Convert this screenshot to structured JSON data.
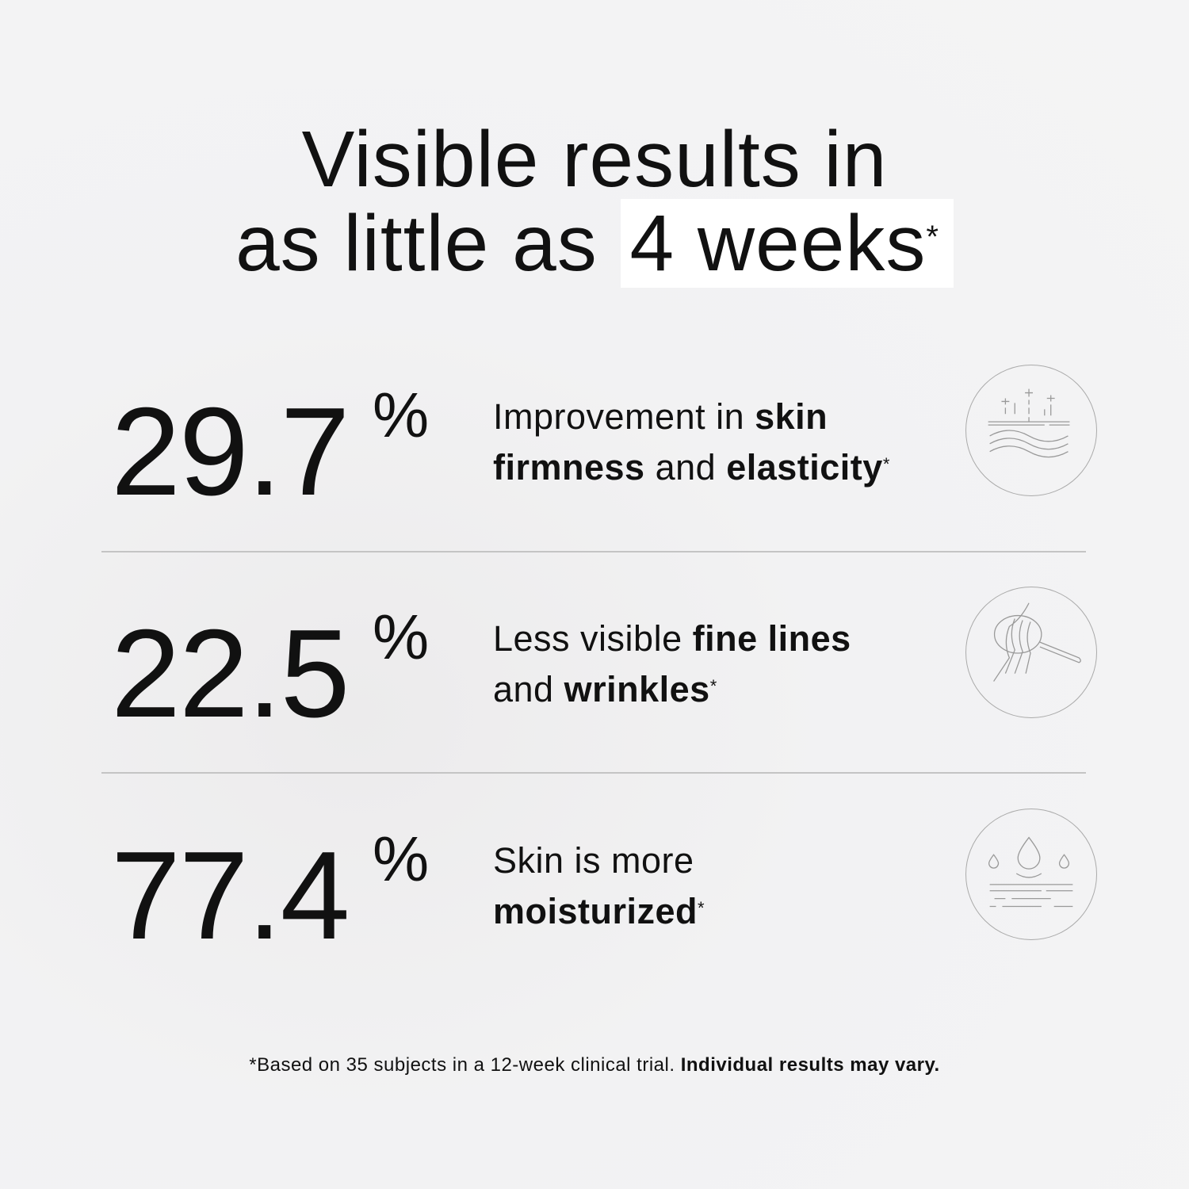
{
  "headline": {
    "line1": "Visible results in",
    "line2_pre": "as little as",
    "line2_highlight": "4 weeks",
    "asterisk": "*"
  },
  "stats": [
    {
      "value": "29.7",
      "unit": "%",
      "parts": [
        [
          "Improvement in ",
          false
        ],
        [
          "skin",
          true
        ],
        [
          "\n",
          false
        ],
        [
          "firmness",
          true
        ],
        [
          " and ",
          false
        ],
        [
          "elasticity",
          true
        ]
      ],
      "asterisk": "*",
      "icon": "skin-firmness-icon"
    },
    {
      "value": "22.5",
      "unit": "%",
      "parts": [
        [
          "Less visible ",
          false
        ],
        [
          "fine lines",
          true
        ],
        [
          "\n",
          false
        ],
        [
          "and ",
          false
        ],
        [
          "wrinkles",
          true
        ]
      ],
      "asterisk": "*",
      "icon": "magnifier-wrinkles-icon"
    },
    {
      "value": "77.4",
      "unit": "%",
      "parts": [
        [
          "Skin is more",
          false
        ],
        [
          "\n",
          false
        ],
        [
          "moisturized",
          true
        ]
      ],
      "asterisk": "*",
      "icon": "water-drops-icon"
    }
  ],
  "footnote": {
    "regular": "*Based on 35 subjects in a 12-week clinical trial.",
    "bold": "Individual results may vary."
  },
  "colors": {
    "text": "#111111",
    "background": "#f3f3f4",
    "highlight": "#ffffff",
    "icon_stroke": "#aaaaaa"
  }
}
